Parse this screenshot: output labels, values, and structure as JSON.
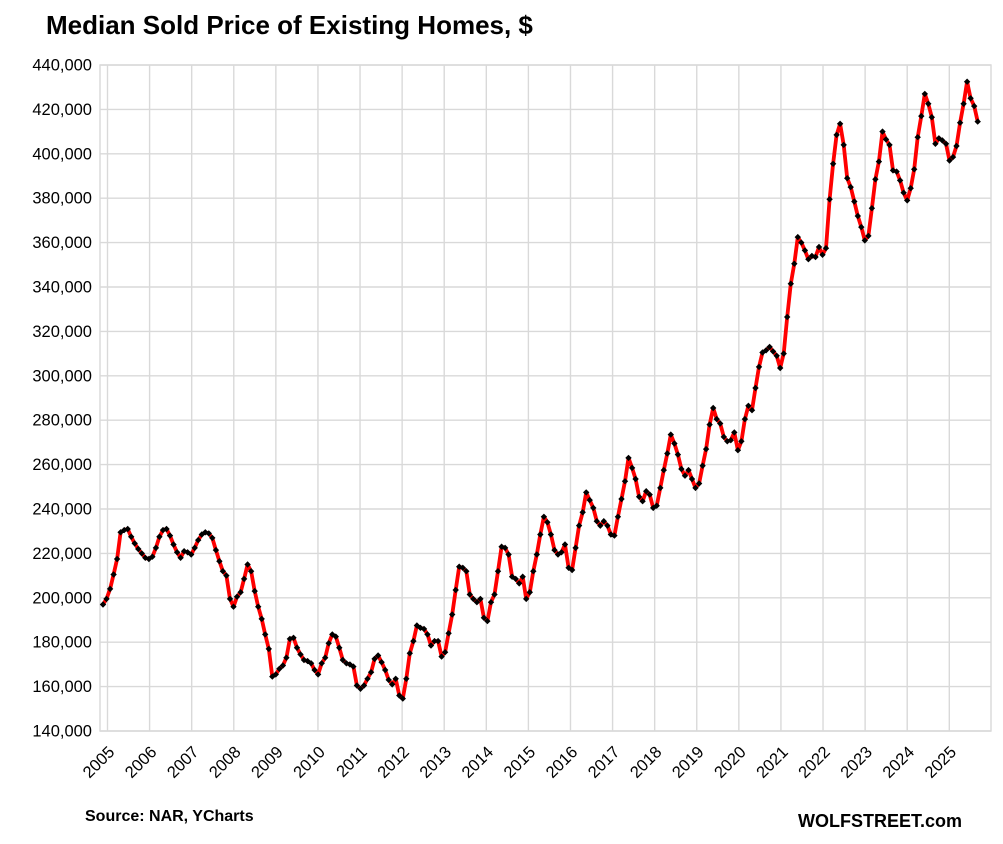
{
  "title": "Median Sold Price of Existing Homes, $",
  "footer": {
    "source": "Source: NAR, YCharts",
    "brand": "WOLFSTREET.com"
  },
  "chart_data": {
    "type": "line",
    "series_name": "Median sold price of existing homes, USD, monthly",
    "frequency": "monthly",
    "start_month": "2005-01",
    "end_month": "2025-09",
    "x_tick_labels": [
      "2005",
      "2006",
      "2007",
      "2008",
      "2009",
      "2010",
      "2011",
      "2012",
      "2013",
      "2014",
      "2015",
      "2016",
      "2017",
      "2018",
      "2019",
      "2020",
      "2021",
      "2022",
      "2023",
      "2024",
      "2025"
    ],
    "y_ticks": [
      140000,
      160000,
      180000,
      200000,
      220000,
      240000,
      260000,
      280000,
      300000,
      320000,
      340000,
      360000,
      380000,
      400000,
      420000,
      440000
    ],
    "y_tick_labels": [
      "140,000",
      "160,000",
      "180,000",
      "200,000",
      "220,000",
      "240,000",
      "260,000",
      "280,000",
      "300,000",
      "320,000",
      "340,000",
      "360,000",
      "380,000",
      "400,000",
      "420,000",
      "440,000"
    ],
    "ylim": [
      140000,
      440000
    ],
    "grid": true,
    "legend": "none",
    "line_color": "#FF0000",
    "marker_color": "#000000",
    "marker_shape": "diamond",
    "grid_color": "#D9D9D9",
    "values": [
      197000,
      199500,
      204000,
      210500,
      217500,
      229500,
      230500,
      231000,
      227500,
      224500,
      222000,
      220000,
      218000,
      217500,
      218500,
      222500,
      227500,
      230500,
      231000,
      228000,
      224000,
      220500,
      218000,
      221000,
      220500,
      219500,
      222500,
      226000,
      228500,
      229500,
      229000,
      227000,
      221500,
      216500,
      212000,
      210000,
      199500,
      196000,
      200500,
      202500,
      208500,
      215000,
      212000,
      203000,
      196000,
      190500,
      183500,
      177000,
      164500,
      165500,
      168000,
      169500,
      173000,
      181500,
      182000,
      177500,
      174500,
      172000,
      171500,
      170500,
      167500,
      165500,
      170500,
      173000,
      179500,
      183500,
      182500,
      177500,
      172000,
      170500,
      170000,
      169000,
      160500,
      159000,
      160500,
      163500,
      166500,
      172500,
      174000,
      171000,
      167500,
      163000,
      161000,
      163500,
      156000,
      154600,
      163500,
      175000,
      180500,
      187500,
      186500,
      186000,
      183500,
      178500,
      180500,
      180500,
      173500,
      175500,
      184000,
      192500,
      203500,
      214000,
      213500,
      212000,
      201500,
      199500,
      198000,
      199500,
      191000,
      189500,
      198000,
      201500,
      212000,
      223000,
      222500,
      219500,
      209500,
      208500,
      206500,
      209500,
      199500,
      202500,
      212000,
      219500,
      228500,
      236500,
      234000,
      228500,
      221500,
      219500,
      220500,
      224000,
      213500,
      212500,
      222500,
      232500,
      238500,
      247500,
      244000,
      240500,
      234500,
      232500,
      234500,
      232500,
      228500,
      228000,
      236500,
      244500,
      252500,
      263000,
      258500,
      253500,
      245500,
      243500,
      248000,
      246500,
      240500,
      241500,
      249500,
      257500,
      265000,
      273500,
      269500,
      264500,
      258000,
      255000,
      257500,
      253500,
      249500,
      251500,
      259500,
      267000,
      278000,
      285500,
      280500,
      278500,
      272500,
      270500,
      271000,
      274500,
      266500,
      270500,
      280500,
      286500,
      284500,
      294500,
      304000,
      310500,
      311500,
      313000,
      311000,
      309000,
      303500,
      310000,
      326500,
      341500,
      350500,
      362500,
      360000,
      356500,
      352500,
      354000,
      353500,
      358000,
      354500,
      357500,
      379500,
      395500,
      408500,
      413500,
      404000,
      389000,
      385000,
      378500,
      372000,
      367000,
      361000,
      363000,
      375500,
      388500,
      396500,
      410000,
      406500,
      404000,
      392500,
      392000,
      388000,
      382500,
      379000,
      384500,
      393000,
      407500,
      417000,
      427000,
      422500,
      416500,
      404500,
      407000,
      406000,
      404500,
      397000,
      398500,
      403500,
      414000,
      422500,
      432500,
      425000,
      421500,
      414500
    ]
  }
}
